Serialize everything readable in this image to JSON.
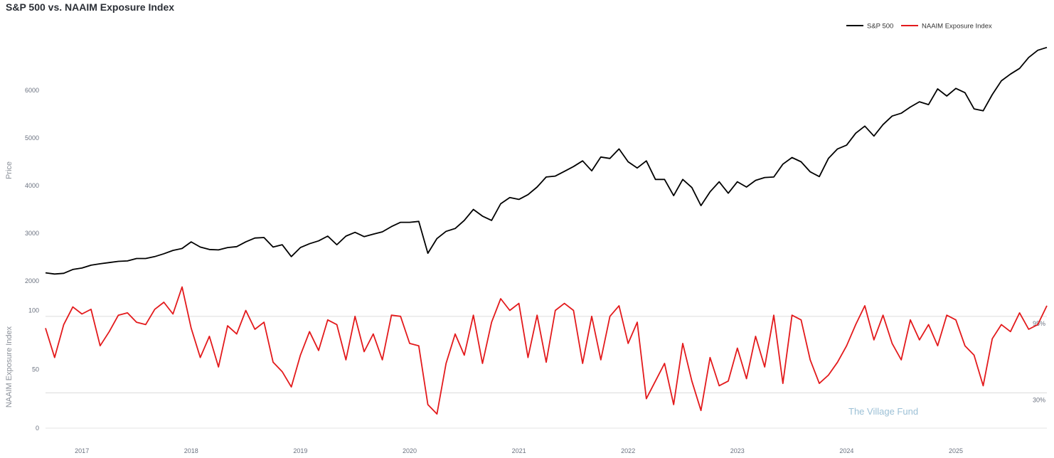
{
  "chart_data": {
    "type": "line",
    "title": "S&P 500 vs. NAAIM Exposure Index",
    "x_ticks": [
      "2017",
      "2018",
      "2019",
      "2020",
      "2021",
      "2022",
      "2023",
      "2024",
      "2025"
    ],
    "x_range": [
      "2016-09",
      "2025-11"
    ],
    "legend": {
      "placement": "top-right",
      "entries": [
        "S&P 500",
        "NAAIM Exposure Index"
      ]
    },
    "colors": {
      "sp500": "#000000",
      "naaim": "#e31a1c"
    },
    "panels": [
      {
        "id": "price",
        "ylabel": "Price",
        "ylim": [
          2000,
          7000
        ],
        "yticks": [
          "2000",
          "3000",
          "4000",
          "5000",
          "6000"
        ]
      },
      {
        "id": "naaim",
        "ylabel": "NAAIM Exposure Index",
        "ylim": [
          0,
          110
        ],
        "yticks": [
          "0",
          "50",
          "100"
        ],
        "reference_lines": [
          {
            "value": 95,
            "label": "95%"
          },
          {
            "value": 30,
            "label": "30%"
          }
        ]
      }
    ],
    "series": [
      {
        "name": "S&P 500",
        "panel": "price",
        "x": [
          "2016-09",
          "2016-10",
          "2016-11",
          "2016-12",
          "2017-01",
          "2017-02",
          "2017-03",
          "2017-04",
          "2017-05",
          "2017-06",
          "2017-07",
          "2017-08",
          "2017-09",
          "2017-10",
          "2017-11",
          "2017-12",
          "2018-01",
          "2018-02",
          "2018-03",
          "2018-04",
          "2018-05",
          "2018-06",
          "2018-07",
          "2018-08",
          "2018-09",
          "2018-10",
          "2018-11",
          "2018-12",
          "2019-01",
          "2019-02",
          "2019-03",
          "2019-04",
          "2019-05",
          "2019-06",
          "2019-07",
          "2019-08",
          "2019-09",
          "2019-10",
          "2019-11",
          "2019-12",
          "2020-01",
          "2020-02",
          "2020-03",
          "2020-04",
          "2020-05",
          "2020-06",
          "2020-07",
          "2020-08",
          "2020-09",
          "2020-10",
          "2020-11",
          "2020-12",
          "2021-01",
          "2021-02",
          "2021-03",
          "2021-04",
          "2021-05",
          "2021-06",
          "2021-07",
          "2021-08",
          "2021-09",
          "2021-10",
          "2021-11",
          "2021-12",
          "2022-01",
          "2022-02",
          "2022-03",
          "2022-04",
          "2022-05",
          "2022-06",
          "2022-07",
          "2022-08",
          "2022-09",
          "2022-10",
          "2022-11",
          "2022-12",
          "2023-01",
          "2023-02",
          "2023-03",
          "2023-04",
          "2023-05",
          "2023-06",
          "2023-07",
          "2023-08",
          "2023-09",
          "2023-10",
          "2023-11",
          "2023-12",
          "2024-01",
          "2024-02",
          "2024-03",
          "2024-04",
          "2024-05",
          "2024-06",
          "2024-07",
          "2024-08",
          "2024-09",
          "2024-10",
          "2024-11",
          "2024-12",
          "2025-01",
          "2025-02",
          "2025-03",
          "2025-04",
          "2025-05",
          "2025-06",
          "2025-07",
          "2025-08",
          "2025-09",
          "2025-10",
          "2025-11"
        ],
        "values": [
          2170,
          2145,
          2160,
          2240,
          2270,
          2330,
          2360,
          2385,
          2410,
          2420,
          2470,
          2470,
          2510,
          2570,
          2640,
          2680,
          2820,
          2710,
          2660,
          2650,
          2700,
          2720,
          2820,
          2900,
          2910,
          2710,
          2760,
          2510,
          2700,
          2780,
          2840,
          2940,
          2760,
          2940,
          3020,
          2930,
          2980,
          3030,
          3140,
          3230,
          3230,
          3250,
          2580,
          2890,
          3040,
          3100,
          3270,
          3500,
          3360,
          3270,
          3620,
          3750,
          3710,
          3810,
          3970,
          4180,
          4200,
          4300,
          4400,
          4520,
          4310,
          4600,
          4570,
          4770,
          4500,
          4370,
          4520,
          4130,
          4130,
          3790,
          4130,
          3960,
          3580,
          3870,
          4080,
          3840,
          4080,
          3970,
          4110,
          4170,
          4180,
          4450,
          4590,
          4500,
          4290,
          4190,
          4570,
          4770,
          4850,
          5100,
          5250,
          5040,
          5280,
          5460,
          5520,
          5650,
          5760,
          5700,
          6030,
          5880,
          6040,
          5950,
          5610,
          5570,
          5910,
          6200,
          6340,
          6460,
          6690,
          6840,
          6900
        ]
      },
      {
        "name": "NAAIM Exposure Index",
        "panel": "naaim",
        "x": [
          "2016-09",
          "2016-10",
          "2016-11",
          "2016-12",
          "2017-01",
          "2017-02",
          "2017-03",
          "2017-04",
          "2017-05",
          "2017-06",
          "2017-07",
          "2017-08",
          "2017-09",
          "2017-10",
          "2017-11",
          "2017-12",
          "2018-01",
          "2018-02",
          "2018-03",
          "2018-04",
          "2018-05",
          "2018-06",
          "2018-07",
          "2018-08",
          "2018-09",
          "2018-10",
          "2018-11",
          "2018-12",
          "2019-01",
          "2019-02",
          "2019-03",
          "2019-04",
          "2019-05",
          "2019-06",
          "2019-07",
          "2019-08",
          "2019-09",
          "2019-10",
          "2019-11",
          "2019-12",
          "2020-01",
          "2020-02",
          "2020-03",
          "2020-04",
          "2020-05",
          "2020-06",
          "2020-07",
          "2020-08",
          "2020-09",
          "2020-10",
          "2020-11",
          "2020-12",
          "2021-01",
          "2021-02",
          "2021-03",
          "2021-04",
          "2021-05",
          "2021-06",
          "2021-07",
          "2021-08",
          "2021-09",
          "2021-10",
          "2021-11",
          "2021-12",
          "2022-01",
          "2022-02",
          "2022-03",
          "2022-04",
          "2022-05",
          "2022-06",
          "2022-07",
          "2022-08",
          "2022-09",
          "2022-10",
          "2022-11",
          "2022-12",
          "2023-01",
          "2023-02",
          "2023-03",
          "2023-04",
          "2023-05",
          "2023-06",
          "2023-07",
          "2023-08",
          "2023-09",
          "2023-10",
          "2023-11",
          "2023-12",
          "2024-01",
          "2024-02",
          "2024-03",
          "2024-04",
          "2024-05",
          "2024-06",
          "2024-07",
          "2024-08",
          "2024-09",
          "2024-10",
          "2024-11",
          "2024-12",
          "2025-01",
          "2025-02",
          "2025-03",
          "2025-04",
          "2025-05",
          "2025-06",
          "2025-07",
          "2025-08",
          "2025-09",
          "2025-10",
          "2025-11"
        ],
        "values": [
          85,
          60,
          88,
          103,
          97,
          101,
          70,
          82,
          96,
          98,
          90,
          88,
          101,
          107,
          97,
          120,
          85,
          60,
          78,
          52,
          87,
          80,
          100,
          84,
          90,
          56,
          48,
          35,
          62,
          82,
          66,
          92,
          88,
          58,
          95,
          65,
          80,
          58,
          96,
          95,
          72,
          70,
          20,
          12,
          55,
          80,
          62,
          96,
          55,
          90,
          110,
          100,
          106,
          60,
          96,
          56,
          100,
          106,
          100,
          55,
          95,
          58,
          95,
          104,
          72,
          90,
          25,
          40,
          55,
          20,
          72,
          40,
          15,
          60,
          36,
          40,
          68,
          42,
          78,
          52,
          96,
          38,
          96,
          92,
          58,
          38,
          45,
          56,
          70,
          88,
          104,
          75,
          96,
          72,
          58,
          92,
          75,
          88,
          70,
          96,
          92,
          70,
          62,
          36,
          76,
          88,
          82,
          98,
          84,
          88,
          104
        ]
      }
    ],
    "watermark": "The Village Fund"
  }
}
